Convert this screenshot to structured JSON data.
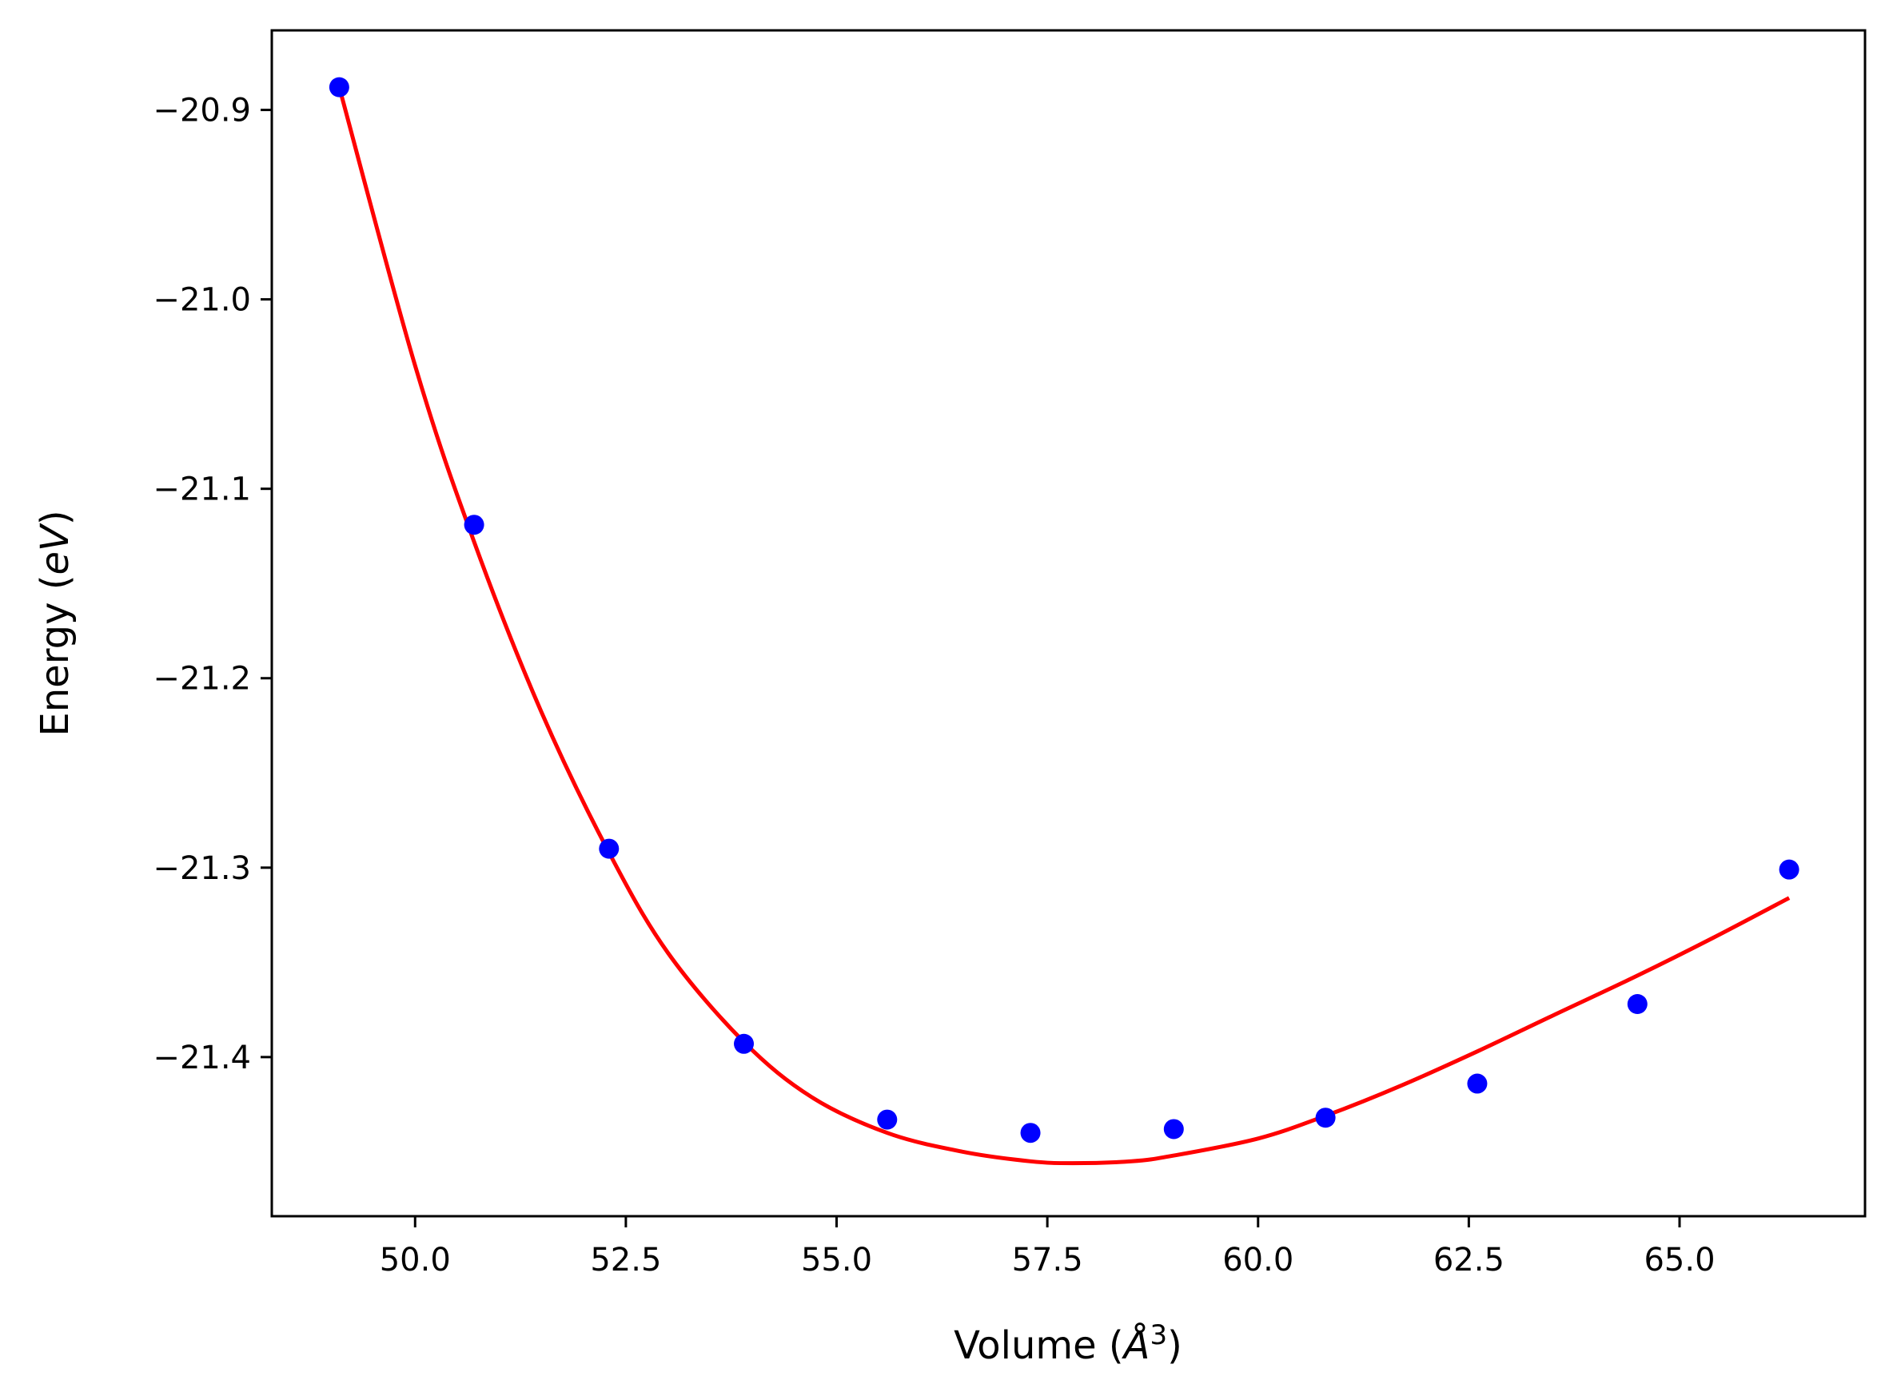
{
  "chart_data": {
    "type": "scatter",
    "xlabel_prefix": "Volume (",
    "xlabel_unit": "Å",
    "xlabel_sup": "3",
    "xlabel_suffix": ")",
    "ylabel_prefix": "Energy (",
    "ylabel_unit": "eV",
    "ylabel_suffix": ")",
    "xlim": [
      48.3,
      67.2
    ],
    "ylim": [
      -21.484,
      -20.858
    ],
    "xticks": [
      50.0,
      52.5,
      55.0,
      57.5,
      60.0,
      62.5,
      65.0
    ],
    "xtick_labels": [
      "50.0",
      "52.5",
      "55.0",
      "57.5",
      "60.0",
      "62.5",
      "65.0"
    ],
    "yticks": [
      -20.9,
      -21.0,
      -21.1,
      -21.2,
      -21.3,
      -21.4
    ],
    "ytick_labels": [
      "−20.9",
      "−21.0",
      "−21.1",
      "−21.2",
      "−21.3",
      "−21.4"
    ],
    "grid": false,
    "series": [
      {
        "kind": "scatter",
        "color": "#0000ff",
        "x": [
          49.1,
          50.7,
          52.3,
          53.9,
          55.6,
          57.3,
          59.0,
          60.8,
          62.6,
          64.5,
          66.3
        ],
        "y": [
          -20.888,
          -21.119,
          -21.29,
          -21.393,
          -21.433,
          -21.44,
          -21.438,
          -21.432,
          -21.414,
          -21.372,
          -21.301
        ]
      },
      {
        "kind": "line",
        "color": "#ff0000",
        "x": [
          49.1,
          50.0,
          50.7,
          51.5,
          52.3,
          53.0,
          53.9,
          54.7,
          55.6,
          56.5,
          57.3,
          57.8,
          58.5,
          59.0,
          60.0,
          60.8,
          61.7,
          62.6,
          63.5,
          64.5,
          65.4,
          66.3
        ],
        "y": [
          -20.888,
          -21.035,
          -21.128,
          -21.218,
          -21.292,
          -21.345,
          -21.392,
          -21.421,
          -21.44,
          -21.45,
          -21.455,
          -21.456,
          -21.455,
          -21.452,
          -21.443,
          -21.431,
          -21.415,
          -21.397,
          -21.378,
          -21.357,
          -21.337,
          -21.316
        ]
      }
    ]
  }
}
